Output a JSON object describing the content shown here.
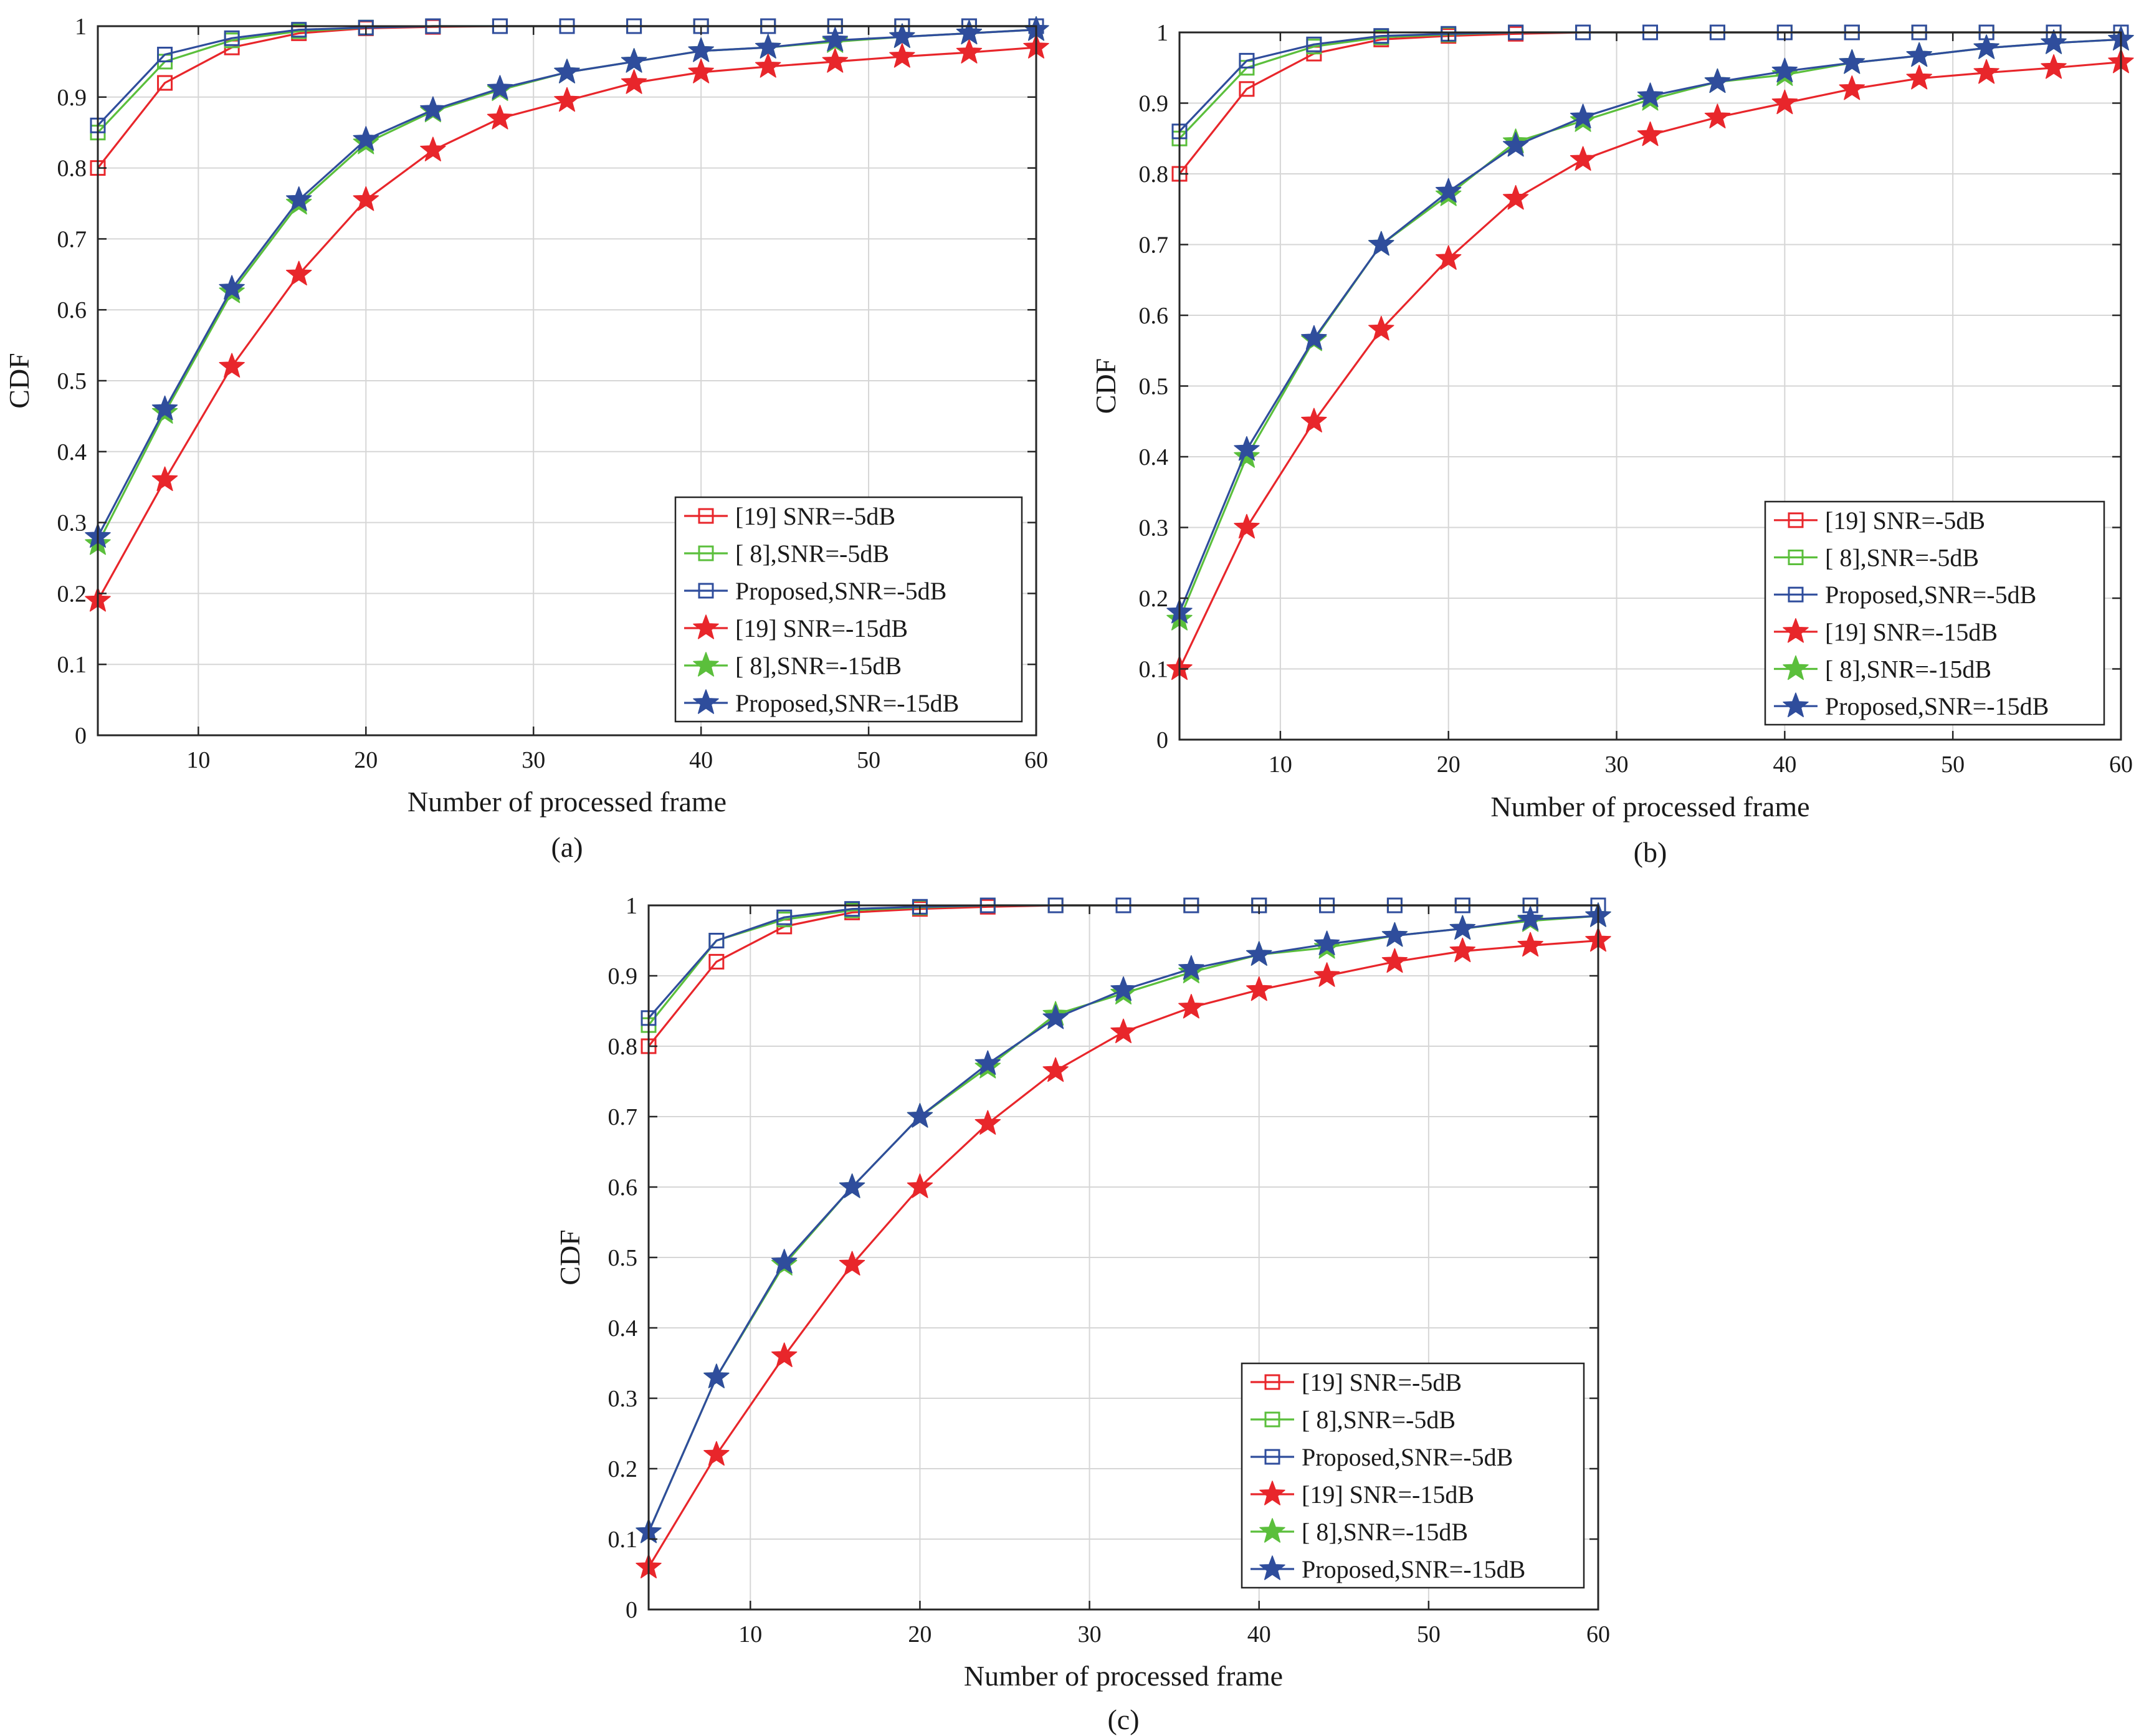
{
  "figure": {
    "colors": {
      "red": "#e8262b",
      "green": "#5bbf3c",
      "blue": "#2f4d9c",
      "grid": "#d6d6d6",
      "axis": "#262626"
    }
  },
  "chart_data": [
    {
      "type": "line",
      "caption": "(a)",
      "xlabel": "Number of processed frame",
      "ylabel": "CDF",
      "xlim": [
        4,
        60
      ],
      "ylim": [
        0,
        1
      ],
      "xticks": [
        10,
        20,
        30,
        40,
        50,
        60
      ],
      "yticks": [
        0,
        0.1,
        0.2,
        0.3,
        0.4,
        0.5,
        0.6,
        0.7,
        0.8,
        0.9,
        1
      ],
      "grid": true,
      "legend_position": "bottom-right",
      "x": [
        4,
        8,
        12,
        16,
        20,
        24,
        28,
        32,
        36,
        40,
        44,
        48,
        52,
        56,
        60
      ],
      "series": [
        {
          "name": "[19] SNR=-5dB",
          "color": "red",
          "marker": "square",
          "values": [
            0.8,
            0.92,
            0.97,
            0.99,
            0.997,
            0.999,
            1,
            1,
            1,
            1,
            1,
            1,
            1,
            1,
            1
          ]
        },
        {
          "name": "[ 8],SNR=-5dB",
          "color": "green",
          "marker": "square",
          "values": [
            0.85,
            0.95,
            0.98,
            0.993,
            0.998,
            1,
            1,
            1,
            1,
            1,
            1,
            1,
            1,
            1,
            1
          ]
        },
        {
          "name": "Proposed,SNR=-5dB",
          "color": "blue",
          "marker": "square",
          "values": [
            0.86,
            0.96,
            0.983,
            0.995,
            0.998,
            1,
            1,
            1,
            1,
            1,
            1,
            1,
            1,
            1,
            1
          ]
        },
        {
          "name": "[19] SNR=-15dB",
          "color": "red",
          "marker": "star",
          "values": [
            0.19,
            0.36,
            0.52,
            0.65,
            0.755,
            0.825,
            0.87,
            0.895,
            0.92,
            0.935,
            0.943,
            0.95,
            0.957,
            0.963,
            0.97
          ]
        },
        {
          "name": "[ 8],SNR=-15dB",
          "color": "green",
          "marker": "star",
          "values": [
            0.27,
            0.455,
            0.625,
            0.75,
            0.835,
            0.88,
            0.91,
            0.935,
            0.95,
            0.965,
            0.97,
            0.978,
            0.985,
            0.99,
            0.995
          ]
        },
        {
          "name": "Proposed,SNR=-15dB",
          "color": "blue",
          "marker": "star",
          "values": [
            0.28,
            0.46,
            0.63,
            0.755,
            0.84,
            0.882,
            0.912,
            0.935,
            0.95,
            0.965,
            0.97,
            0.98,
            0.985,
            0.99,
            0.995
          ]
        }
      ]
    },
    {
      "type": "line",
      "caption": "(b)",
      "xlabel": "Number of processed frame",
      "ylabel": "CDF",
      "xlim": [
        4,
        60
      ],
      "ylim": [
        0,
        1
      ],
      "xticks": [
        10,
        20,
        30,
        40,
        50,
        60
      ],
      "yticks": [
        0,
        0.1,
        0.2,
        0.3,
        0.4,
        0.5,
        0.6,
        0.7,
        0.8,
        0.9,
        1
      ],
      "grid": true,
      "legend_position": "bottom-right",
      "x": [
        4,
        8,
        12,
        16,
        20,
        24,
        28,
        32,
        36,
        40,
        44,
        48,
        52,
        56,
        60
      ],
      "series": [
        {
          "name": "[19] SNR=-5dB",
          "color": "red",
          "marker": "square",
          "values": [
            0.8,
            0.92,
            0.97,
            0.99,
            0.995,
            0.998,
            1,
            1,
            1,
            1,
            1,
            1,
            1,
            1,
            1
          ]
        },
        {
          "name": "[ 8],SNR=-5dB",
          "color": "green",
          "marker": "square",
          "values": [
            0.85,
            0.95,
            0.98,
            0.993,
            0.997,
            1,
            1,
            1,
            1,
            1,
            1,
            1,
            1,
            1,
            1
          ]
        },
        {
          "name": "Proposed,SNR=-5dB",
          "color": "blue",
          "marker": "square",
          "values": [
            0.86,
            0.96,
            0.983,
            0.995,
            0.998,
            1,
            1,
            1,
            1,
            1,
            1,
            1,
            1,
            1,
            1
          ]
        },
        {
          "name": "[19] SNR=-15dB",
          "color": "red",
          "marker": "star",
          "values": [
            0.1,
            0.3,
            0.45,
            0.58,
            0.68,
            0.765,
            0.82,
            0.855,
            0.88,
            0.9,
            0.92,
            0.935,
            0.943,
            0.95,
            0.958
          ]
        },
        {
          "name": "[ 8],SNR=-15dB",
          "color": "green",
          "marker": "star",
          "values": [
            0.17,
            0.4,
            0.565,
            0.7,
            0.77,
            0.845,
            0.875,
            0.905,
            0.93,
            0.94,
            0.957,
            0.967,
            0.978,
            0.985,
            0.99
          ]
        },
        {
          "name": "Proposed,SNR=-15dB",
          "color": "blue",
          "marker": "star",
          "values": [
            0.18,
            0.41,
            0.567,
            0.7,
            0.775,
            0.84,
            0.88,
            0.91,
            0.93,
            0.945,
            0.957,
            0.967,
            0.978,
            0.985,
            0.99
          ]
        }
      ]
    },
    {
      "type": "line",
      "caption": "(c)",
      "xlabel": "Number of processed frame",
      "ylabel": "CDF",
      "xlim": [
        4,
        60
      ],
      "ylim": [
        0,
        1
      ],
      "xticks": [
        10,
        20,
        30,
        40,
        50,
        60
      ],
      "yticks": [
        0,
        0.1,
        0.2,
        0.3,
        0.4,
        0.5,
        0.6,
        0.7,
        0.8,
        0.9,
        1
      ],
      "grid": true,
      "legend_position": "bottom-right",
      "x": [
        4,
        8,
        12,
        16,
        20,
        24,
        28,
        32,
        36,
        40,
        44,
        48,
        52,
        56,
        60
      ],
      "series": [
        {
          "name": "[19] SNR=-5dB",
          "color": "red",
          "marker": "square",
          "values": [
            0.8,
            0.92,
            0.97,
            0.99,
            0.995,
            0.998,
            1,
            1,
            1,
            1,
            1,
            1,
            1,
            1,
            1
          ]
        },
        {
          "name": "[ 8],SNR=-5dB",
          "color": "green",
          "marker": "square",
          "values": [
            0.83,
            0.95,
            0.98,
            0.993,
            0.997,
            1,
            1,
            1,
            1,
            1,
            1,
            1,
            1,
            1,
            1
          ]
        },
        {
          "name": "Proposed,SNR=-5dB",
          "color": "blue",
          "marker": "square",
          "values": [
            0.84,
            0.95,
            0.983,
            0.995,
            0.998,
            1,
            1,
            1,
            1,
            1,
            1,
            1,
            1,
            1,
            1
          ]
        },
        {
          "name": "[19] SNR=-15dB",
          "color": "red",
          "marker": "star",
          "values": [
            0.06,
            0.22,
            0.36,
            0.49,
            0.6,
            0.69,
            0.765,
            0.82,
            0.855,
            0.88,
            0.9,
            0.92,
            0.935,
            0.943,
            0.95
          ]
        },
        {
          "name": "[ 8],SNR=-15dB",
          "color": "green",
          "marker": "star",
          "values": [
            0.11,
            0.33,
            0.49,
            0.6,
            0.7,
            0.77,
            0.845,
            0.875,
            0.905,
            0.93,
            0.94,
            0.957,
            0.967,
            0.978,
            0.985
          ]
        },
        {
          "name": "Proposed,SNR=-15dB",
          "color": "blue",
          "marker": "star",
          "values": [
            0.11,
            0.33,
            0.493,
            0.6,
            0.7,
            0.775,
            0.84,
            0.88,
            0.91,
            0.93,
            0.945,
            0.957,
            0.967,
            0.98,
            0.985
          ]
        }
      ]
    }
  ]
}
